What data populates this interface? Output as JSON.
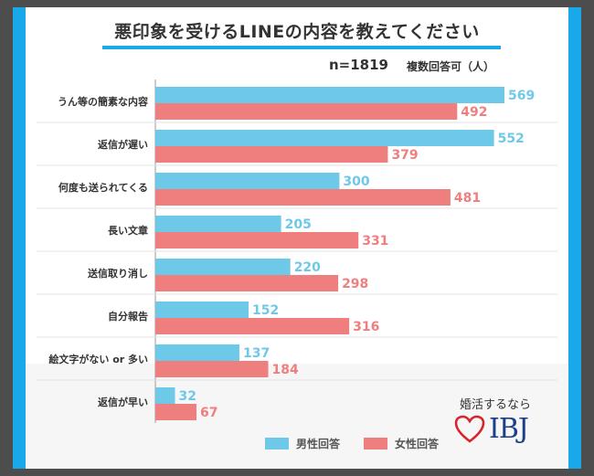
{
  "title": "悪印象を受けるLINEの内容を教えてください",
  "sample": "n=1819",
  "note": "複数回答可（人）",
  "colors": {
    "male": "#6ec9e8",
    "female": "#ef7f7f",
    "accent": "#19a9ea"
  },
  "legend": {
    "male": "男性回答",
    "female": "女性回答"
  },
  "brand": {
    "tagline": "婚活するなら",
    "logo_text": "IBJ",
    "logo_icon": "heart-icon"
  },
  "chart_data": {
    "type": "bar",
    "orientation": "horizontal",
    "categories": [
      "うん等の簡素な内容",
      "返信が遅い",
      "何度も送られてくる",
      "長い文章",
      "送信取り消し",
      "自分報告",
      "絵文字がない or 多い",
      "返信が早い"
    ],
    "series": [
      {
        "name": "男性回答",
        "values": [
          569,
          552,
          300,
          205,
          220,
          152,
          137,
          32
        ]
      },
      {
        "name": "女性回答",
        "values": [
          492,
          379,
          481,
          331,
          298,
          316,
          184,
          67
        ]
      }
    ],
    "xlim": [
      0,
      569
    ]
  }
}
